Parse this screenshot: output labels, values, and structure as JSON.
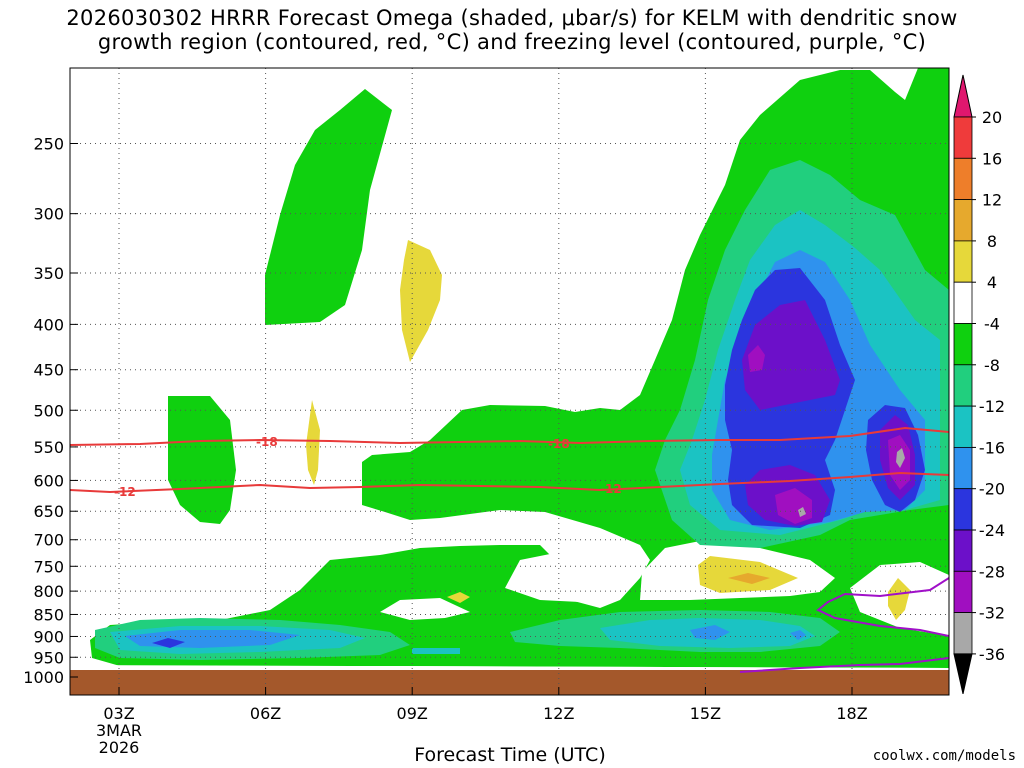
{
  "title_line1": "2026030302 HRRR Forecast Omega (shaded, μbar/s) for KELM with dendritic snow",
  "title_line2": "growth region (contoured, red, °C) and freezing level (contoured, purple, °C)",
  "xlabel": "Forecast Time (UTC)",
  "credit": "coolwx.com/models",
  "chart_data": {
    "type": "heatmap",
    "title": "2026030302 HRRR Forecast Omega (shaded, μbar/s) for KELM with dendritic snow growth region (contoured, red, °C) and freezing level (contoured, purple, °C)",
    "xlabel": "Forecast Time (UTC)",
    "ylabel": "",
    "x_ticks": [
      "03Z",
      "06Z",
      "09Z",
      "12Z",
      "15Z",
      "18Z"
    ],
    "x_date_label": [
      "3MAR",
      "2026"
    ],
    "y_ticks": [
      250,
      300,
      350,
      400,
      450,
      500,
      550,
      600,
      650,
      700,
      750,
      800,
      850,
      900,
      950,
      1000
    ],
    "y_unit": "hPa",
    "y_scale": "log-pressure",
    "grid": true,
    "colorbar": {
      "labels": [
        "20",
        "16",
        "12",
        "8",
        "4",
        "-4",
        "-8",
        "-12",
        "-16",
        "-20",
        "-24",
        "-28",
        "-32",
        "-36"
      ],
      "levels": [
        {
          "range": ">20",
          "color": "#e0176e"
        },
        {
          "range": "16 to 20",
          "color": "#ef3b3b"
        },
        {
          "range": "12 to 16",
          "color": "#ee7e2a"
        },
        {
          "range": "8 to 12",
          "color": "#e6a92d"
        },
        {
          "range": "4 to 8",
          "color": "#e6d83a"
        },
        {
          "range": "-4 to 4",
          "color": "#ffffff"
        },
        {
          "range": "-8 to -4",
          "color": "#0fd00f"
        },
        {
          "range": "-12 to -8",
          "color": "#21cf7e"
        },
        {
          "range": "-16 to -12",
          "color": "#1bc3c3"
        },
        {
          "range": "-20 to -16",
          "color": "#2f92ee"
        },
        {
          "range": "-24 to -20",
          "color": "#2b35de"
        },
        {
          "range": "-28 to -24",
          "color": "#6c10c9"
        },
        {
          "range": "-32 to -28",
          "color": "#a00fc0"
        },
        {
          "range": "-36 to -32",
          "color": "#a8a8a8"
        },
        {
          "range": "<-36",
          "color": "#000000"
        }
      ]
    },
    "contours": [
      {
        "label": "-18",
        "color": "#e83a3a",
        "pressure_hpa": 550
      },
      {
        "label": "-12",
        "color": "#e83a3a",
        "pressure_hpa": 610
      },
      {
        "label": "freezing level",
        "color": "#a010c8",
        "pressure_hpa": 850
      }
    ],
    "contour_label_text": [
      "-18",
      "-18",
      "-12",
      "-12"
    ],
    "features": [
      {
        "time_utc": "16Z-17Z",
        "pressure_hpa": 420,
        "omega": -28
      },
      {
        "time_utc": "19Z",
        "pressure_hpa": 580,
        "omega": -32
      },
      {
        "time_utc": "04Z",
        "pressure_hpa": 920,
        "omega": -20
      },
      {
        "time_utc": "09Z",
        "pressure_hpa": 370,
        "omega": 4
      },
      {
        "time_utc": "16Z",
        "pressure_hpa": 780,
        "omega": 6
      }
    ]
  }
}
